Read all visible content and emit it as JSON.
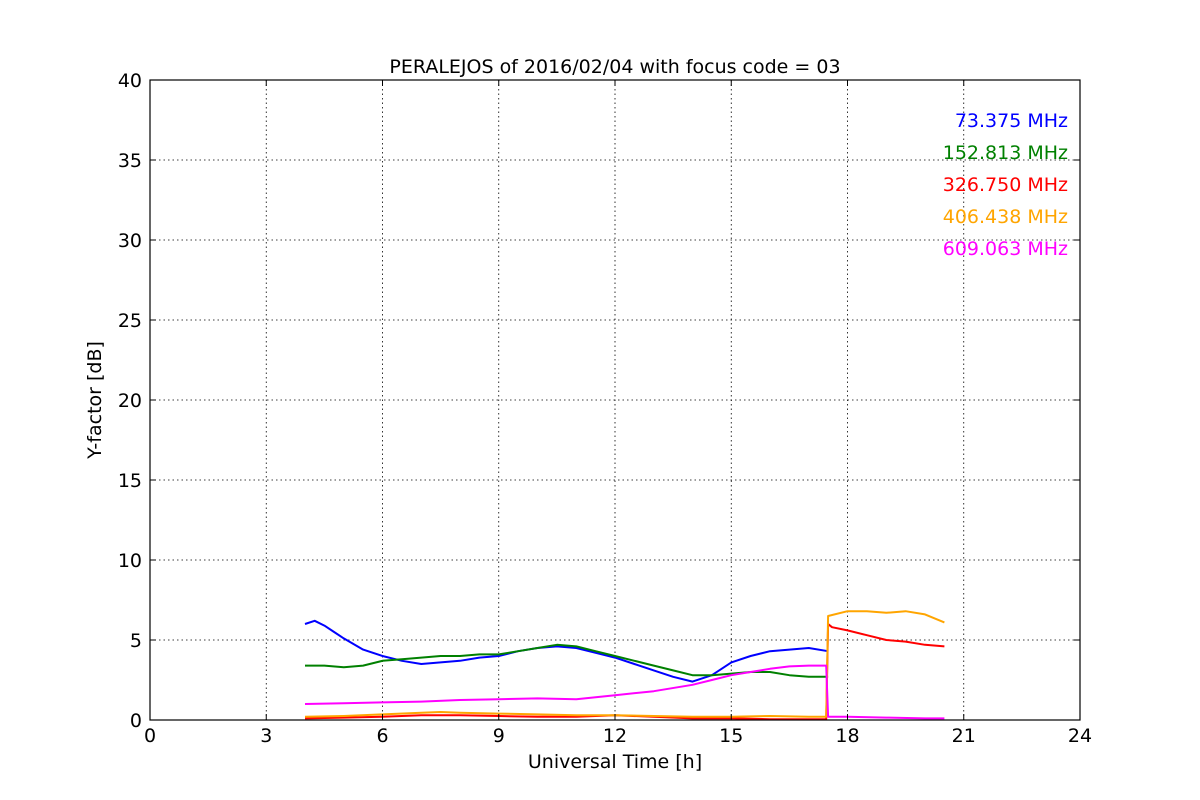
{
  "chart_data": {
    "type": "line",
    "title": "PERALEJOS of 2016/02/04 with focus code = 03",
    "xlabel": "Universal Time [h]",
    "ylabel": "Y-factor [dB]",
    "xlim": [
      0,
      24
    ],
    "ylim": [
      0,
      40
    ],
    "xticks": [
      "0",
      "3",
      "6",
      "9",
      "12",
      "15",
      "18",
      "21",
      "24"
    ],
    "yticks": [
      "0",
      "5",
      "10",
      "15",
      "20",
      "25",
      "30",
      "35",
      "40"
    ],
    "grid": true,
    "legend_position": "top-right",
    "series": [
      {
        "name": "73.375 MHz",
        "color": "#0000ff",
        "x": [
          4.0,
          4.25,
          4.5,
          4.75,
          5.0,
          5.5,
          6.0,
          6.5,
          7.0,
          7.5,
          8.0,
          8.5,
          9.0,
          9.5,
          10.0,
          10.5,
          11.0,
          11.5,
          12.0,
          12.5,
          13.0,
          13.5,
          14.0,
          14.5,
          15.0,
          15.5,
          16.0,
          16.5,
          17.0,
          17.5
        ],
        "y": [
          6.0,
          6.2,
          5.9,
          5.5,
          5.1,
          4.4,
          4.0,
          3.7,
          3.5,
          3.6,
          3.7,
          3.9,
          4.0,
          4.3,
          4.5,
          4.6,
          4.5,
          4.2,
          3.9,
          3.5,
          3.1,
          2.7,
          2.4,
          2.8,
          3.6,
          4.0,
          4.3,
          4.4,
          4.5,
          4.3
        ]
      },
      {
        "name": "152.813 MHz",
        "color": "#008000",
        "x": [
          4.0,
          4.5,
          5.0,
          5.5,
          6.0,
          6.5,
          7.0,
          7.5,
          8.0,
          8.5,
          9.0,
          9.5,
          10.0,
          10.5,
          11.0,
          11.5,
          12.0,
          12.5,
          13.0,
          13.5,
          14.0,
          14.5,
          15.0,
          15.5,
          16.0,
          16.5,
          17.0,
          17.5
        ],
        "y": [
          3.4,
          3.4,
          3.3,
          3.4,
          3.7,
          3.8,
          3.9,
          4.0,
          4.0,
          4.1,
          4.1,
          4.3,
          4.5,
          4.7,
          4.6,
          4.3,
          4.0,
          3.7,
          3.4,
          3.1,
          2.8,
          2.8,
          2.9,
          3.0,
          3.0,
          2.8,
          2.7,
          2.7
        ]
      },
      {
        "name": "326.750 MHz",
        "color": "#ff0000",
        "x": [
          4.0,
          5.0,
          6.0,
          7.0,
          8.0,
          9.0,
          10.0,
          11.0,
          12.0,
          13.0,
          14.0,
          15.0,
          16.0,
          17.0,
          17.45,
          17.5,
          17.6,
          18.0,
          18.5,
          19.0,
          19.5,
          20.0,
          20.5
        ],
        "y": [
          0.1,
          0.15,
          0.2,
          0.3,
          0.3,
          0.25,
          0.2,
          0.2,
          0.3,
          0.2,
          0.1,
          0.1,
          0.05,
          0.05,
          0.05,
          6.0,
          5.8,
          5.6,
          5.3,
          5.0,
          4.9,
          4.7,
          4.6
        ]
      },
      {
        "name": "406.438 MHz",
        "color": "#ffa500",
        "x": [
          4.0,
          5.0,
          6.0,
          7.0,
          7.5,
          8.0,
          9.0,
          10.0,
          11.0,
          12.0,
          13.0,
          14.0,
          15.0,
          16.0,
          17.0,
          17.45,
          17.5,
          18.0,
          18.5,
          19.0,
          19.5,
          20.0,
          20.5
        ],
        "y": [
          0.2,
          0.25,
          0.35,
          0.45,
          0.5,
          0.45,
          0.4,
          0.35,
          0.3,
          0.3,
          0.25,
          0.2,
          0.2,
          0.25,
          0.2,
          0.2,
          6.5,
          6.8,
          6.8,
          6.7,
          6.8,
          6.6,
          6.1
        ]
      },
      {
        "name": "609.063 MHz",
        "color": "#ff00ff",
        "x": [
          4.0,
          5.0,
          6.0,
          7.0,
          8.0,
          9.0,
          10.0,
          11.0,
          12.0,
          13.0,
          14.0,
          14.5,
          15.0,
          15.5,
          16.0,
          16.5,
          17.0,
          17.45,
          17.5,
          18.0,
          19.0,
          20.0,
          20.5
        ],
        "y": [
          1.0,
          1.05,
          1.1,
          1.15,
          1.25,
          1.3,
          1.35,
          1.3,
          1.55,
          1.8,
          2.2,
          2.5,
          2.8,
          3.0,
          3.2,
          3.35,
          3.4,
          3.4,
          0.2,
          0.2,
          0.15,
          0.1,
          0.1
        ]
      }
    ]
  }
}
